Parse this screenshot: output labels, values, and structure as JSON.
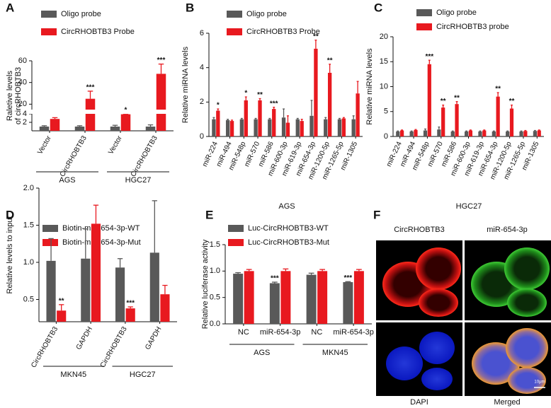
{
  "chart_data": [
    {
      "type": "bar",
      "panel": "A",
      "ylabel": [
        "Raletive levels",
        "of circRHOBTB3"
      ],
      "categories": [
        "Vector",
        "CircRHOBTB3",
        "Vector",
        "CircRHOBTB3"
      ],
      "groups": [
        "AGS",
        "HGC27"
      ],
      "series": [
        {
          "name": "Oligo probe",
          "color": "#595959",
          "values": [
            1,
            1,
            1,
            1
          ],
          "errors": [
            0.2,
            0.2,
            0.3,
            0.4
          ]
        },
        {
          "name": "CircRHOBTB3 Probe",
          "color": "#e8191f",
          "values": [
            2.8,
            25,
            3.9,
            48
          ],
          "errors": [
            0.3,
            7,
            0.1,
            9
          ],
          "significance": [
            "**",
            "***",
            "*",
            "***"
          ]
        }
      ],
      "ylim": [
        0,
        60
      ],
      "ybreak": [
        4,
        15
      ],
      "yticks": [
        2,
        4,
        20,
        40,
        60
      ]
    },
    {
      "type": "bar",
      "panel": "B",
      "ylabel": "Relative miRNA levels",
      "xlabel": "AGS",
      "categories": [
        "miR-224",
        "miR-494",
        "miR-548p",
        "miR-570",
        "miR-586",
        "miR-600-3p",
        "miR-619-3p",
        "miR-654-3p",
        "miR-1200-5p",
        "miR-1265-5p",
        "miR-1305"
      ],
      "series": [
        {
          "name": "Oligo probe",
          "color": "#595959",
          "values": [
            1,
            0.95,
            1,
            1,
            1,
            1.1,
            1,
            1.2,
            1,
            1,
            1
          ],
          "errors": [
            0.1,
            0.05,
            0.05,
            0.05,
            0.05,
            0.5,
            0.05,
            0.9,
            0.1,
            0.05,
            0.2
          ]
        },
        {
          "name": "CircRHOBTB3 Probe",
          "color": "#e8191f",
          "values": [
            1.5,
            0.9,
            2.1,
            2.1,
            1.6,
            0.8,
            0.9,
            5.1,
            3.7,
            1.05,
            2.5
          ],
          "errors": [
            0.1,
            0.05,
            0.2,
            0.1,
            0.1,
            0.4,
            0.1,
            0.5,
            0.5,
            0.05,
            0.7
          ],
          "significance": [
            "*",
            null,
            "*",
            "**",
            "***",
            null,
            null,
            "**",
            "**",
            null,
            null
          ]
        }
      ],
      "ylim": [
        0,
        6
      ],
      "yticks": [
        0,
        2,
        4,
        6
      ]
    },
    {
      "type": "bar",
      "panel": "C",
      "ylabel": "Relative miRNA levels",
      "xlabel": "HGC27",
      "categories": [
        "miR-224",
        "miR-494",
        "miR-548p",
        "miR-570",
        "miR-586",
        "miR-600-3p",
        "miR-619-3p",
        "miR-654-3p",
        "miR-1200-5p",
        "miR-1265-5p",
        "miR-1305"
      ],
      "series": [
        {
          "name": "Oligo probe",
          "color": "#595959",
          "values": [
            1,
            1,
            1.2,
            1.4,
            1,
            1,
            1,
            1,
            1,
            1,
            1.1
          ],
          "errors": [
            0.1,
            0.1,
            0.3,
            0.5,
            0.1,
            0.1,
            0.1,
            0.1,
            0.1,
            0.1,
            0.1
          ]
        },
        {
          "name": "CircRHOBTB3 probe",
          "color": "#e8191f",
          "values": [
            1.2,
            1.3,
            14.5,
            5.8,
            6.5,
            1.2,
            1.2,
            8,
            5.6,
            1.1,
            1.2
          ],
          "errors": [
            0.1,
            0.1,
            0.8,
            0.5,
            0.5,
            0.1,
            0.1,
            0.8,
            0.7,
            0.1,
            0.1
          ],
          "significance": [
            null,
            null,
            "***",
            "**",
            "**",
            null,
            null,
            "**",
            "**",
            null,
            null
          ]
        }
      ],
      "ylim": [
        0,
        20
      ],
      "yticks": [
        0,
        5,
        10,
        15,
        20
      ]
    },
    {
      "type": "bar",
      "panel": "D",
      "ylabel": "Relative levels to input",
      "categories": [
        "CircRHOBTB3",
        "GAPDH",
        "CircRHOBTB3",
        "GAPDH"
      ],
      "groups": [
        "MKN45",
        "HGC27"
      ],
      "series": [
        {
          "name": "Biotin-miR-654-3p-WT",
          "color": "#595959",
          "values": [
            1.02,
            1.05,
            0.93,
            1.13
          ],
          "errors": [
            0.3,
            0.4,
            0.12,
            0.7
          ]
        },
        {
          "name": "Biotin-miR-654-3p-Mut",
          "color": "#e8191f",
          "values": [
            0.35,
            1.52,
            0.38,
            0.57
          ],
          "errors": [
            0.08,
            0.25,
            0.02,
            0.12
          ],
          "significance": [
            "**",
            null,
            "***",
            null
          ]
        }
      ],
      "ylim": [
        0.2,
        2.0
      ],
      "yticks": [
        0.5,
        {
          "value": 1.0,
          "label": "1.0"
        },
        1.5,
        {
          "value": 2.0,
          "label": "2.0"
        }
      ]
    },
    {
      "type": "bar",
      "panel": "E",
      "ylabel": "Relative luciferase activity",
      "categories": [
        "NC",
        "miR-654-3p",
        "NC",
        "miR-654-3p"
      ],
      "groups": [
        "AGS",
        "MKN45"
      ],
      "series": [
        {
          "name": "Luc-CircRHOBTB3-WT",
          "color": "#595959",
          "values": [
            0.95,
            0.77,
            0.93,
            0.79
          ],
          "errors": [
            0.02,
            0.02,
            0.03,
            0.01
          ],
          "significance": [
            null,
            "***",
            null,
            "***"
          ]
        },
        {
          "name": "Luc-CircRHOBTB3-Mut",
          "color": "#e8191f",
          "values": [
            1,
            1,
            1,
            1
          ],
          "errors": [
            0.03,
            0.04,
            0.03,
            0.03
          ]
        }
      ],
      "ylim": [
        0,
        1.5
      ],
      "yticks": [
        {
          "value": 0,
          "label": "0.0"
        },
        0.5,
        {
          "value": 1.0,
          "label": "1.0"
        },
        1.5
      ]
    }
  ],
  "panel_f": {
    "panel": "F",
    "labels": [
      "CircRHOBTB3",
      "miR-654-3p",
      "DAPI",
      "Merged"
    ],
    "scale_bar": "10μm"
  }
}
